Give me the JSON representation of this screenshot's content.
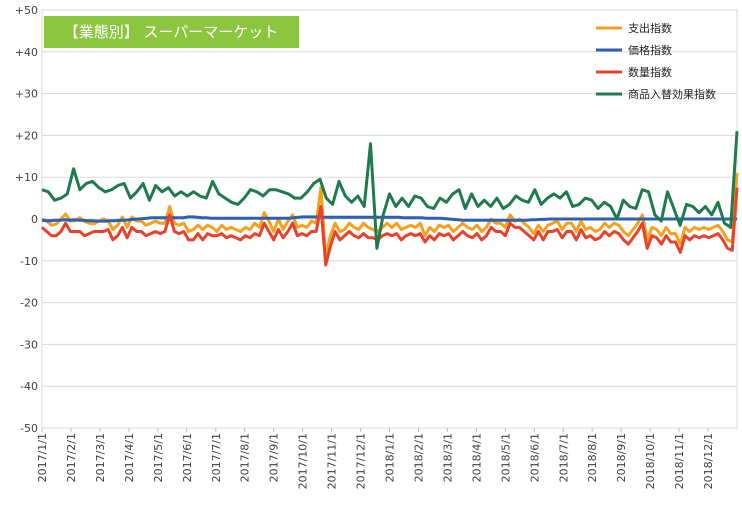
{
  "chart_data": {
    "type": "line",
    "title": "【業態別】 スーパーマーケット",
    "title_bg_color": "#8cc63f",
    "ylim": [
      -50,
      50
    ],
    "yticks": [
      "+50",
      "+40",
      "+30",
      "+20",
      "+10",
      "0",
      "-10",
      "-20",
      "-30",
      "-40",
      "-50"
    ],
    "grid": true,
    "legend_position": "top-right",
    "x_tick_labels": [
      "2017/1/1",
      "2017/2/1",
      "2017/3/1",
      "2017/4/1",
      "2017/5/1",
      "2017/6/1",
      "2017/7/1",
      "2017/8/1",
      "2017/9/1",
      "2017/10/1",
      "2017/11/1",
      "2017/12/1",
      "2018/1/1",
      "2018/2/1",
      "2018/3/1",
      "2018/4/1",
      "2018/5/1",
      "2018/6/1",
      "2018/7/1",
      "2018/8/1",
      "2018/9/1",
      "2018/10/1",
      "2018/11/1",
      "2018/12/1"
    ],
    "x_points_per_month": 4.375,
    "series": [
      {
        "name": "支出指数",
        "color": "#f5a11c",
        "values": [
          0,
          -0.5,
          -1.5,
          -1.2,
          0,
          1.2,
          -0.5,
          -0.4,
          0.3,
          -0.6,
          -1,
          -1.2,
          -0.5,
          0,
          -0.5,
          -2.5,
          -1.5,
          0.5,
          -2,
          0.5,
          -0.5,
          -0.5,
          -1.5,
          -1,
          -0.5,
          -1,
          -1,
          3,
          -1,
          -1.5,
          -1,
          -3,
          -2.5,
          -1.5,
          -2.5,
          -1.5,
          -2,
          -3,
          -1.5,
          -2.5,
          -2,
          -2.5,
          -3,
          -2,
          -2.5,
          -1,
          -2,
          1.5,
          -0.5,
          -3,
          0,
          -2.5,
          -0.5,
          1,
          -2,
          -1.5,
          -2,
          -0.5,
          -1,
          7.5,
          -9,
          -4,
          -1,
          -3,
          -2.5,
          -1,
          -2,
          -2.5,
          -1,
          -2,
          -2.5,
          -3,
          -2,
          -1,
          -2,
          -1,
          -2.5,
          -2,
          -1.5,
          -2,
          -1,
          -4,
          -2,
          -3,
          -1.5,
          -2,
          -1.5,
          -3,
          -2,
          -1,
          -2,
          -2.5,
          -1.5,
          -3,
          -2,
          0,
          -1,
          -1,
          -2,
          1,
          -0.5,
          0,
          -1,
          -2,
          -3.5,
          -1.5,
          -3,
          -1.5,
          -1,
          -0.5,
          -2.5,
          -1,
          -1,
          -3,
          -0.5,
          -2.5,
          -2,
          -3,
          -2.5,
          -1,
          -2,
          -1,
          -1.5,
          -3,
          -4,
          -2.5,
          -1,
          1,
          -5,
          -2,
          -2.5,
          -4,
          -2,
          -3.5,
          -3.5,
          -6,
          -2,
          -3,
          -2,
          -2.5,
          -2,
          -2.5,
          -2,
          -1.5,
          -3,
          -5,
          -5.5,
          11
        ]
      },
      {
        "name": "価格指数",
        "color": "#2f5fb3",
        "values": [
          -0.3,
          -0.4,
          -0.4,
          -0.3,
          -0.3,
          -0.2,
          -0.3,
          -0.2,
          -0.3,
          -0.3,
          -0.4,
          -0.4,
          -0.5,
          -0.5,
          -0.5,
          -0.4,
          -0.4,
          -0.3,
          -0.3,
          -0.2,
          -0.1,
          0,
          0.1,
          0.2,
          0.3,
          0.3,
          0.3,
          0.3,
          0.3,
          0.3,
          0.3,
          0.3,
          0.5,
          0.5,
          0.4,
          0.3,
          0.3,
          0.2,
          0.2,
          0.2,
          0.2,
          0.2,
          0.2,
          0.2,
          0.2,
          0.2,
          0.2,
          0.2,
          0.2,
          0.2,
          0.2,
          0.2,
          0.2,
          0.2,
          0.2,
          0.3,
          0.4,
          0.5,
          0.5,
          0.5,
          0.5,
          0.4,
          0.4,
          0.4,
          0.4,
          0.4,
          0.4,
          0.4,
          0.4,
          0.4,
          0.4,
          0.4,
          0.4,
          0.4,
          0.4,
          0.4,
          0.4,
          0.4,
          0.4,
          0.3,
          0.3,
          0.3,
          0.3,
          0.3,
          0.2,
          0.2,
          0.2,
          0.2,
          0.1,
          0,
          -0.1,
          -0.2,
          -0.3,
          -0.3,
          -0.3,
          -0.3,
          -0.3,
          -0.3,
          -0.3,
          -0.3,
          -0.3,
          -0.3,
          -0.3,
          -0.3,
          -0.3,
          -0.3,
          -0.3,
          -0.2,
          -0.2,
          -0.1,
          -0.1,
          0,
          0,
          0,
          0,
          0,
          0,
          0,
          0,
          0,
          0,
          0,
          0,
          0,
          0,
          0,
          0,
          0,
          0,
          0,
          0,
          0,
          0,
          0,
          0,
          0,
          0,
          0,
          0,
          0,
          0,
          0,
          0,
          0,
          0,
          0,
          0,
          0,
          0,
          0,
          0,
          0,
          0
        ]
      },
      {
        "name": "数量指数",
        "color": "#e8412c",
        "values": [
          -2,
          -3,
          -4,
          -4,
          -3,
          -1,
          -3,
          -3,
          -3,
          -4,
          -3.5,
          -3,
          -3,
          -3,
          -2.5,
          -5,
          -4,
          -2,
          -4.5,
          -2,
          -3,
          -3,
          -4,
          -3.5,
          -3,
          -3.5,
          -3,
          1,
          -3,
          -3.5,
          -3,
          -5,
          -5,
          -3.5,
          -5,
          -3.5,
          -4,
          -4,
          -3.5,
          -4.5,
          -4,
          -4.5,
          -5,
          -4,
          -4.5,
          -3.5,
          -4,
          -1,
          -3,
          -5,
          -2.5,
          -4.5,
          -3,
          -1,
          -4,
          -3.5,
          -4,
          -3,
          -3,
          3,
          -11,
          -6.5,
          -3,
          -5,
          -4,
          -3,
          -4,
          -4.5,
          -3.5,
          -4.5,
          -4.5,
          -5,
          -4,
          -3.5,
          -4,
          -3.5,
          -5,
          -4,
          -3.5,
          -4,
          -3.5,
          -5.5,
          -4,
          -5,
          -3.5,
          -4,
          -3.5,
          -5,
          -4,
          -3,
          -4,
          -4.5,
          -3.5,
          -5,
          -4,
          -2,
          -3,
          -3,
          -4,
          -1,
          -2,
          -2,
          -3,
          -4,
          -5,
          -3,
          -5,
          -3,
          -3,
          -2.5,
          -4.5,
          -3,
          -3,
          -5,
          -2.5,
          -4.5,
          -4,
          -5,
          -4.5,
          -3,
          -4,
          -3,
          -3.5,
          -5,
          -6,
          -4.5,
          -3,
          -1,
          -7,
          -4,
          -4.5,
          -6,
          -4,
          -5.5,
          -5.5,
          -8,
          -4,
          -5,
          -4,
          -4.5,
          -4,
          -4.5,
          -4,
          -3.5,
          -5,
          -7,
          -7.5,
          7.5
        ]
      },
      {
        "name": "商品入替効果指数",
        "color": "#1f7a4d",
        "values": [
          7,
          6.5,
          4.5,
          5,
          6,
          12,
          7,
          8.5,
          9,
          7.5,
          6.5,
          7,
          8,
          8.5,
          5,
          6.5,
          8.5,
          4.5,
          8,
          6.5,
          7.5,
          5.5,
          6.5,
          5.5,
          6.5,
          5.5,
          5,
          9,
          6,
          5,
          4,
          3.5,
          5,
          7,
          6.5,
          5.5,
          7,
          7,
          6.5,
          6,
          5,
          5,
          6.5,
          8.5,
          9.5,
          5,
          3.5,
          9,
          5.5,
          4,
          5.5,
          3,
          18,
          -7,
          1,
          6,
          3,
          5,
          3,
          5.5,
          5,
          3,
          2.5,
          5,
          4,
          6,
          7,
          2.5,
          6,
          3,
          4.5,
          3,
          5,
          2.5,
          3.5,
          5.5,
          4.5,
          4,
          7,
          3.5,
          5,
          6,
          5,
          6.5,
          3,
          3.5,
          5,
          4.5,
          2.5,
          4,
          3,
          0,
          4.5,
          3,
          2.5,
          7,
          6.5,
          1,
          -0.5,
          6.5,
          2.5,
          -1.5,
          3.5,
          3,
          1.5,
          3,
          1,
          4,
          -1,
          -2,
          21
        ]
      }
    ]
  }
}
